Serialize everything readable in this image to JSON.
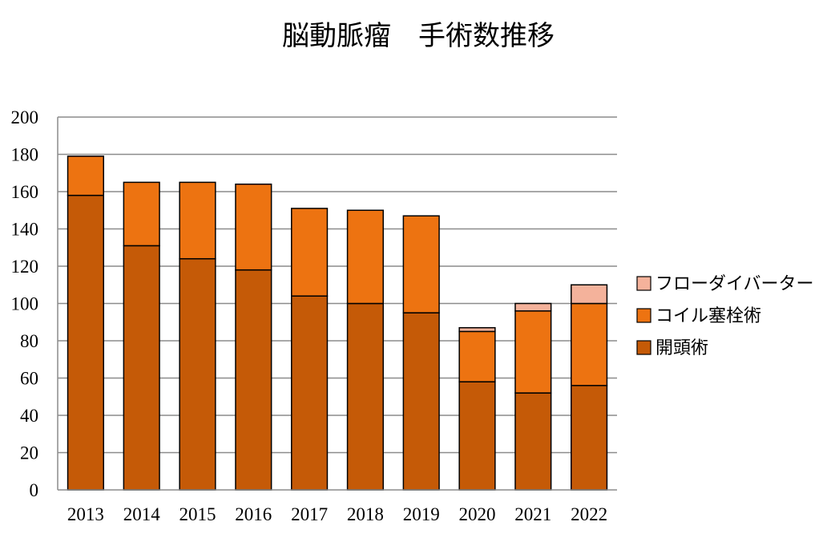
{
  "chart_data": {
    "type": "bar",
    "stacked": true,
    "title": "脳動脈瘤　手術数推移",
    "categories": [
      "2013",
      "2014",
      "2015",
      "2016",
      "2017",
      "2018",
      "2019",
      "2020",
      "2021",
      "2022"
    ],
    "series": [
      {
        "name": "開頭術",
        "color": "#c55a07",
        "values": [
          158,
          131,
          124,
          118,
          104,
          100,
          95,
          58,
          52,
          56
        ]
      },
      {
        "name": "コイル塞栓術",
        "color": "#ed7311",
        "values": [
          21,
          34,
          41,
          46,
          47,
          50,
          52,
          27,
          44,
          44
        ]
      },
      {
        "name": "フローダイバーター",
        "color": "#f4b29b",
        "values": [
          0,
          0,
          0,
          0,
          0,
          0,
          0,
          2,
          4,
          10
        ]
      }
    ],
    "ylim": [
      0,
      200
    ],
    "yticks": [
      0,
      20,
      40,
      60,
      80,
      100,
      120,
      140,
      160,
      180,
      200
    ],
    "legend": {
      "position": "right",
      "order": [
        "フローダイバーター",
        "コイル塞栓術",
        "開頭術"
      ]
    },
    "grid": true,
    "xlabel": "",
    "ylabel": ""
  }
}
